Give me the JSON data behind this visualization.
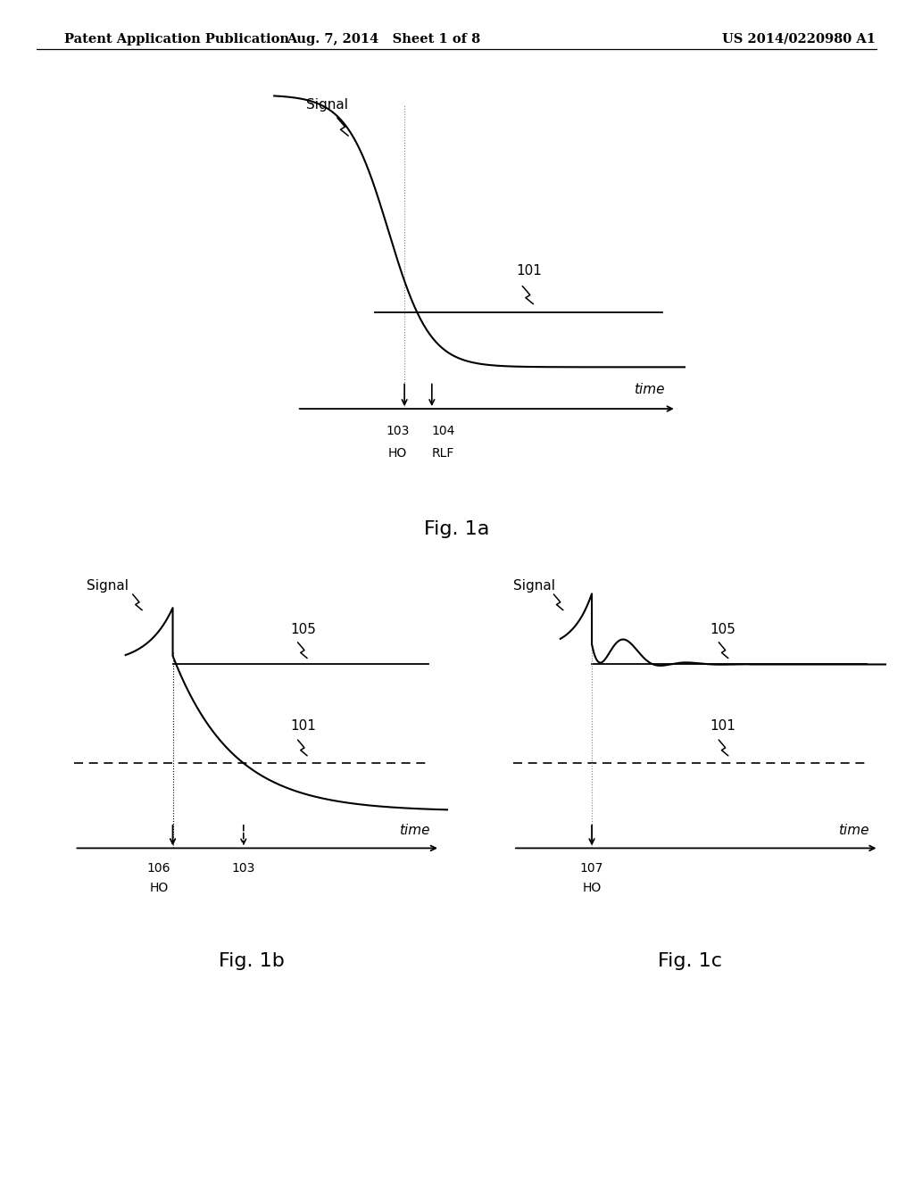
{
  "bg_color": "#ffffff",
  "header_left": "Patent Application Publication",
  "header_mid": "Aug. 7, 2014   Sheet 1 of 8",
  "header_right": "US 2014/0220980 A1",
  "fig1a_title": "Fig. 1a",
  "fig1b_title": "Fig. 1b",
  "fig1c_title": "Fig. 1c"
}
